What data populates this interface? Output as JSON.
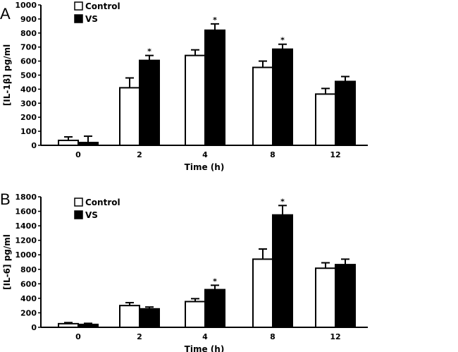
{
  "chart_data": [
    {
      "type": "bar",
      "panel_label": "A",
      "categories": [
        "0",
        "2",
        "4",
        "8",
        "12"
      ],
      "xlabel": "Time (h)",
      "ylabel": "[IL-1β] pg/ml",
      "ylim": [
        0,
        1000
      ],
      "yticks": [
        0,
        100,
        200,
        300,
        400,
        500,
        600,
        700,
        800,
        900,
        1000
      ],
      "legend_position": "top-left",
      "grid": false,
      "series": [
        {
          "name": "Control",
          "color": "#ffffff",
          "values": [
            35,
            410,
            640,
            555,
            365
          ],
          "error": [
            25,
            70,
            40,
            45,
            40
          ]
        },
        {
          "name": "VS",
          "color": "#000000",
          "values": [
            20,
            605,
            820,
            685,
            455
          ],
          "error": [
            45,
            35,
            45,
            35,
            35
          ]
        }
      ],
      "significance": [
        null,
        "*",
        "*",
        "*",
        null
      ]
    },
    {
      "type": "bar",
      "panel_label": "B",
      "categories": [
        "0",
        "2",
        "4",
        "8",
        "12"
      ],
      "xlabel": "Time (h)",
      "ylabel": "[IL-6] pg/ml",
      "ylim": [
        0,
        1800
      ],
      "yticks": [
        0,
        200,
        400,
        600,
        800,
        1000,
        1200,
        1400,
        1600,
        1800
      ],
      "legend_position": "top-left",
      "grid": false,
      "series": [
        {
          "name": "Control",
          "color": "#ffffff",
          "values": [
            50,
            300,
            355,
            940,
            815
          ],
          "error": [
            15,
            40,
            40,
            140,
            75
          ]
        },
        {
          "name": "VS",
          "color": "#000000",
          "values": [
            40,
            255,
            520,
            1550,
            865
          ],
          "error": [
            15,
            25,
            60,
            130,
            75
          ]
        }
      ],
      "significance": [
        null,
        null,
        "*",
        "*",
        null
      ]
    }
  ]
}
